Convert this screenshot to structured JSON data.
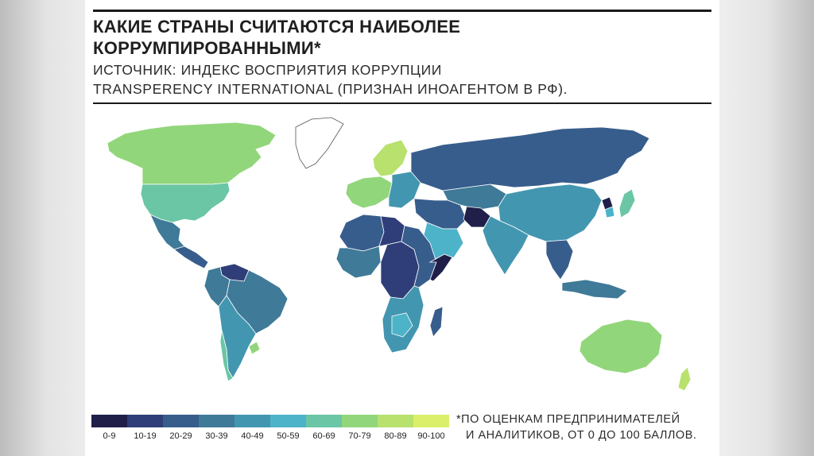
{
  "title": {
    "line1": "КАКИЕ СТРАНЫ СЧИТАЮТСЯ НАИБОЛЕЕ",
    "line2": "КОРРУМПИРОВАННЫМИ*"
  },
  "subtitle": {
    "line1": "ИСТОЧНИК: ИНДЕКС ВОСПРИЯТИЯ КОРРУПЦИИ",
    "line2": "TRANSPERENCY INTERNATIONAL (ПРИЗНАН ИНОАГЕНТОМ В РФ)."
  },
  "legend": {
    "bins": [
      {
        "label": "0-9",
        "color": "#1f1f4a"
      },
      {
        "label": "10-19",
        "color": "#2f3e78"
      },
      {
        "label": "20-29",
        "color": "#375d8c"
      },
      {
        "label": "30-39",
        "color": "#3f7a98"
      },
      {
        "label": "40-49",
        "color": "#4396b0"
      },
      {
        "label": "50-59",
        "color": "#4db3c9"
      },
      {
        "label": "60-69",
        "color": "#6ac6a4"
      },
      {
        "label": "70-79",
        "color": "#92d67b"
      },
      {
        "label": "80-89",
        "color": "#b8e16e"
      },
      {
        "label": "90-100",
        "color": "#dcef6a"
      }
    ]
  },
  "note": {
    "line1": "*ПО ОЦЕНКАМ ПРЕДПРИНИМАТЕЛЕЙ",
    "line2": "И АНАЛИТИКОВ, ОТ 0 ДО 100 БАЛЛОВ."
  },
  "map": {
    "regions": [
      {
        "id": "canada",
        "color": "#92d67b"
      },
      {
        "id": "usa",
        "color": "#6ac6a4"
      },
      {
        "id": "greenland",
        "color": "#ffffff"
      },
      {
        "id": "mexico",
        "color": "#3f7a98"
      },
      {
        "id": "central-america",
        "color": "#375d8c"
      },
      {
        "id": "venezuela",
        "color": "#2f3e78"
      },
      {
        "id": "south-america-north",
        "color": "#3f7a98"
      },
      {
        "id": "brazil",
        "color": "#3f7a98"
      },
      {
        "id": "south-america-south",
        "color": "#4396b0"
      },
      {
        "id": "chile",
        "color": "#6ac6a4"
      },
      {
        "id": "uruguay",
        "color": "#92d67b"
      },
      {
        "id": "scandinavia",
        "color": "#b8e16e"
      },
      {
        "id": "western-europe",
        "color": "#92d67b"
      },
      {
        "id": "eastern-europe",
        "color": "#4396b0"
      },
      {
        "id": "russia",
        "color": "#375d8c"
      },
      {
        "id": "kazakhstan",
        "color": "#3f7a98"
      },
      {
        "id": "middle-east",
        "color": "#375d8c"
      },
      {
        "id": "arabia",
        "color": "#4db3c9"
      },
      {
        "id": "afghanistan",
        "color": "#1f1f4a"
      },
      {
        "id": "china",
        "color": "#4396b0"
      },
      {
        "id": "india",
        "color": "#4396b0"
      },
      {
        "id": "southeast-asia",
        "color": "#375d8c"
      },
      {
        "id": "japan",
        "color": "#6ac6a4"
      },
      {
        "id": "korea-north",
        "color": "#1f1f4a"
      },
      {
        "id": "korea-south",
        "color": "#4db3c9"
      },
      {
        "id": "north-africa",
        "color": "#375d8c"
      },
      {
        "id": "libya",
        "color": "#2f3e78"
      },
      {
        "id": "west-africa",
        "color": "#3f7a98"
      },
      {
        "id": "central-africa",
        "color": "#2f3e78"
      },
      {
        "id": "east-africa",
        "color": "#375d8c"
      },
      {
        "id": "somalia",
        "color": "#1f1f4a"
      },
      {
        "id": "southern-africa",
        "color": "#4396b0"
      },
      {
        "id": "botswana",
        "color": "#4db3c9"
      },
      {
        "id": "madagascar",
        "color": "#375d8c"
      },
      {
        "id": "indonesia",
        "color": "#3f7a98"
      },
      {
        "id": "australia",
        "color": "#92d67b"
      },
      {
        "id": "new-zealand",
        "color": "#b8e16e"
      }
    ]
  }
}
